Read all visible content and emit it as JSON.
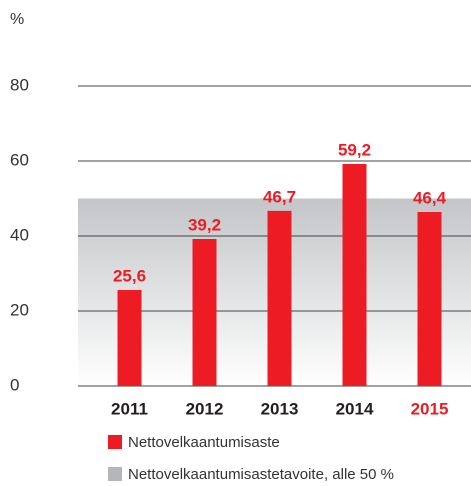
{
  "chart_data": {
    "type": "bar",
    "y_label": "%",
    "categories": [
      "2011",
      "2012",
      "2013",
      "2014",
      "2015"
    ],
    "category_label_colors": [
      "#231f20",
      "#231f20",
      "#231f20",
      "#231f20",
      "#ed1c24"
    ],
    "series": [
      {
        "name": "Nettovelkaantumisaste",
        "color": "#ed1c24",
        "values": [
          25.6,
          39.2,
          46.7,
          59.2,
          46.4
        ],
        "value_labels": [
          "25,6",
          "39,2",
          "46,7",
          "59,2",
          "46,4"
        ]
      }
    ],
    "target": {
      "name": "Nettovelkaantumisastetavoite, alle 50 %",
      "color": "#b4b6b9",
      "value": 50
    },
    "ylim": [
      0,
      80
    ],
    "yticks": [
      0,
      20,
      40,
      60,
      80
    ],
    "grid": true
  }
}
